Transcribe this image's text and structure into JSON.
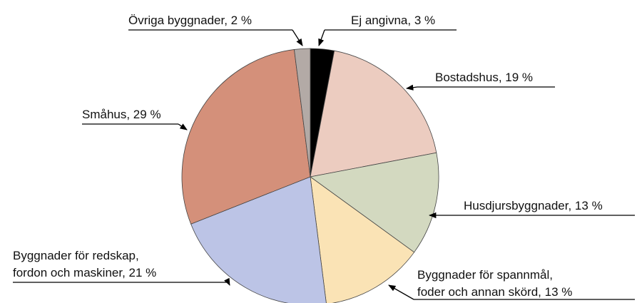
{
  "chart_data": {
    "type": "pie",
    "categories": [
      "Ej angivna, 3 %",
      "Bostadshus, 19 %",
      "Husdjursbyggnader, 13 %",
      "Byggnader för spannmål,\nfoder och annan skörd, 13 %",
      "Byggnader för redskap,\nfordon och maskiner, 21 %",
      "Småhus, 29 %",
      "Övriga byggnader, 2 %"
    ],
    "values": [
      3,
      19,
      13,
      13,
      21,
      29,
      2
    ],
    "colors": [
      "#000000",
      "#ecccc0",
      "#d3d9c0",
      "#fae3b5",
      "#bcc4e6",
      "#d4907a",
      "#b3aaa6"
    ]
  }
}
